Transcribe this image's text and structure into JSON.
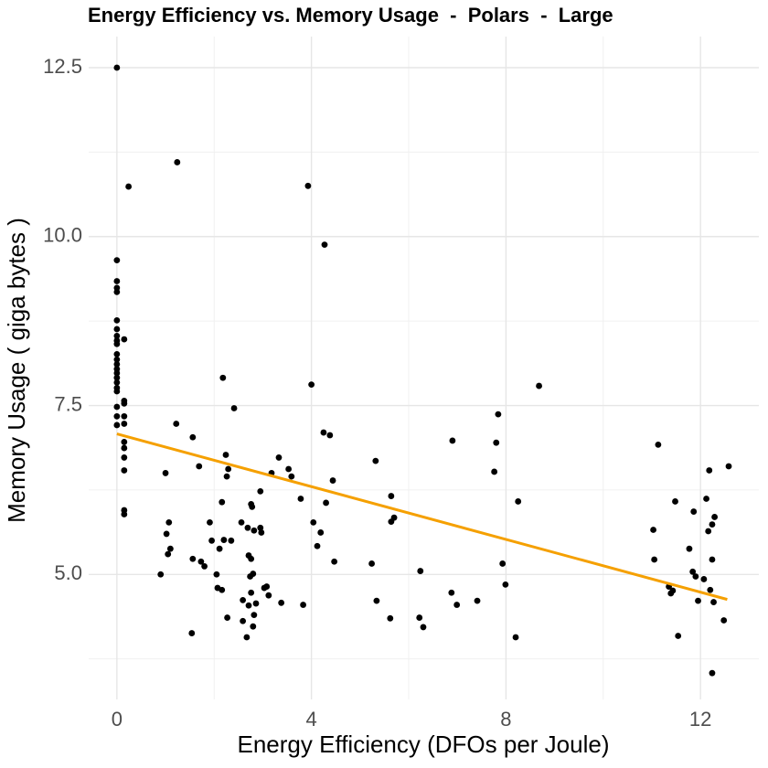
{
  "chart_data": {
    "type": "scatter",
    "title": "Energy Efficiency vs. Memory Usage  -  Polars  -  Large",
    "x_label": "Energy Efficiency (DFOs per Joule)",
    "y_label": "Memory Usage ( giga bytes )",
    "color": "#000000",
    "x": [
      0,
      0,
      0,
      0,
      0,
      0,
      0,
      0,
      0,
      0,
      0,
      0,
      0,
      0,
      0,
      0,
      0,
      0,
      0,
      0,
      0,
      0,
      0.15,
      0.15,
      0.15,
      0.15,
      0.15,
      0.15,
      0.15,
      0.15,
      0.15,
      0.15,
      0.15,
      0.24,
      1.24,
      0.9,
      1.0,
      1.07,
      1.02,
      1.05,
      1.1,
      1.22,
      1.56,
      1.56,
      1.54,
      1.69,
      1.73,
      1.8,
      1.91,
      1.95,
      2.05,
      2.11,
      2.07,
      2.16,
      2.16,
      2.18,
      2.2,
      2.24,
      2.26,
      2.29,
      2.27,
      2.35,
      2.41,
      2.56,
      2.59,
      2.59,
      2.67,
      2.69,
      2.71,
      2.71,
      2.74,
      2.76,
      2.76,
      2.76,
      2.78,
      2.8,
      2.82,
      2.82,
      2.8,
      2.86,
      2.95,
      2.95,
      2.97,
      3.03,
      3.08,
      3.12,
      3.18,
      3.33,
      3.38,
      3.53,
      3.59,
      3.78,
      3.83,
      3.93,
      4.0,
      4.04,
      4.12,
      4.19,
      4.25,
      4.27,
      4.3,
      4.38,
      4.44,
      4.47,
      5.24,
      5.32,
      5.34,
      5.62,
      5.64,
      5.64,
      5.7,
      6.24,
      6.22,
      6.3,
      6.88,
      6.9,
      6.99,
      7.41,
      7.76,
      7.8,
      7.84,
      7.93,
      7.99,
      8.2,
      8.25,
      8.68,
      11.03,
      11.05,
      11.13,
      11.35,
      11.39,
      11.43,
      11.48,
      11.54,
      11.77,
      11.84,
      11.86,
      11.9,
      11.95,
      12.07,
      12.12,
      12.16,
      12.18,
      12.2,
      12.24,
      12.24,
      12.27,
      12.29,
      12.24,
      12.48,
      12.58
    ],
    "values": [
      12.5,
      9.65,
      9.34,
      9.24,
      9.18,
      8.76,
      8.63,
      8.53,
      8.46,
      8.41,
      8.26,
      8.18,
      8.11,
      8.04,
      7.98,
      7.91,
      7.84,
      7.76,
      7.71,
      7.48,
      7.34,
      7.21,
      8.48,
      7.57,
      7.53,
      7.34,
      7.23,
      6.96,
      6.87,
      6.73,
      6.54,
      5.95,
      5.89,
      10.74,
      11.1,
      5.0,
      6.5,
      5.77,
      5.6,
      5.3,
      5.38,
      7.23,
      7.03,
      5.23,
      4.13,
      6.6,
      5.19,
      5.12,
      5.77,
      5.5,
      5.0,
      5.38,
      4.8,
      4.77,
      6.07,
      7.91,
      5.51,
      6.77,
      6.45,
      6.56,
      4.36,
      5.5,
      7.46,
      5.77,
      4.62,
      4.31,
      4.07,
      5.69,
      5.28,
      4.54,
      4.97,
      4.73,
      5.23,
      6.04,
      6.0,
      5.01,
      5.65,
      4.4,
      4.23,
      4.57,
      6.23,
      5.69,
      5.62,
      4.8,
      4.82,
      4.69,
      6.5,
      6.73,
      4.58,
      6.56,
      6.45,
      6.12,
      4.55,
      10.75,
      7.81,
      5.77,
      5.42,
      5.62,
      7.1,
      9.88,
      6.06,
      7.06,
      6.39,
      5.19,
      5.16,
      6.68,
      4.61,
      4.35,
      6.16,
      5.78,
      5.84,
      5.05,
      4.36,
      4.22,
      4.73,
      6.98,
      4.55,
      4.61,
      6.52,
      6.95,
      7.37,
      5.16,
      4.85,
      4.07,
      6.08,
      7.79,
      5.66,
      5.22,
      6.92,
      4.82,
      4.72,
      4.76,
      6.08,
      4.09,
      5.38,
      5.04,
      5.93,
      4.97,
      4.61,
      4.93,
      6.12,
      5.64,
      6.54,
      4.77,
      5.22,
      5.74,
      4.59,
      5.85,
      3.54,
      4.32,
      6.6
    ],
    "trend_line": {
      "x": [
        0,
        12.55
      ],
      "values": [
        7.08,
        4.63
      ],
      "color": "#f5a000"
    },
    "xlim": [
      -0.58,
      13.2
    ],
    "ylim": [
      3.15,
      12.96
    ],
    "xticks": [
      0,
      4,
      8,
      12
    ],
    "yticks": [
      {
        "value": 5,
        "label": "5.0"
      },
      7.5,
      {
        "value": 10,
        "label": "10.0"
      },
      12.5
    ],
    "x_minor_grid": [
      2,
      6,
      10
    ],
    "y_minor_grid": [
      3.75,
      6.25,
      8.75,
      11.25
    ],
    "grid": true
  }
}
